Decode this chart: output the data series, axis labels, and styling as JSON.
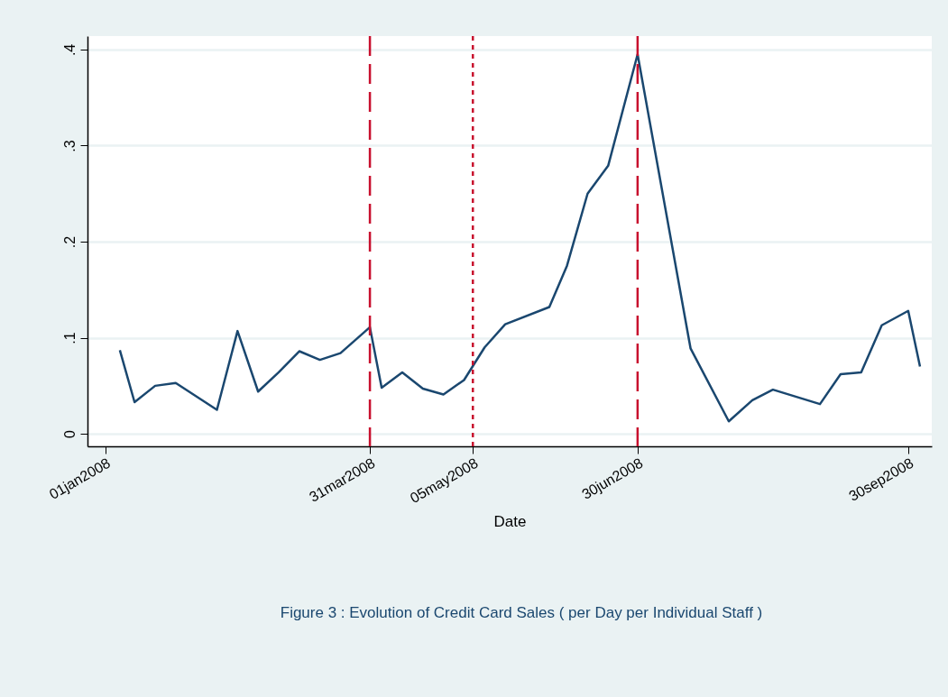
{
  "chart_data": {
    "type": "line",
    "xlabel": "Date",
    "x": [
      "2008-01-06",
      "2008-01-11",
      "2008-01-18",
      "2008-01-25",
      "2008-02-08",
      "2008-02-15",
      "2008-02-22",
      "2008-02-29",
      "2008-03-07",
      "2008-03-14",
      "2008-03-21",
      "2008-03-31",
      "2008-04-04",
      "2008-04-11",
      "2008-04-18",
      "2008-04-25",
      "2008-05-02",
      "2008-05-09",
      "2008-05-16",
      "2008-05-31",
      "2008-06-06",
      "2008-06-13",
      "2008-06-20",
      "2008-06-30",
      "2008-07-18",
      "2008-07-31",
      "2008-08-08",
      "2008-08-15",
      "2008-08-31",
      "2008-09-07",
      "2008-09-14",
      "2008-09-21",
      "2008-09-30",
      "2008-10-04"
    ],
    "series": [
      {
        "color": "#1a476f",
        "values": [
          0.087,
          0.033,
          0.05,
          0.053,
          0.025,
          0.107,
          0.044,
          0.064,
          0.086,
          0.077,
          0.084,
          0.111,
          0.048,
          0.064,
          0.047,
          0.041,
          0.056,
          0.09,
          0.114,
          0.132,
          0.175,
          0.25,
          0.279,
          0.395,
          0.089,
          0.013,
          0.035,
          0.046,
          0.031,
          0.062,
          0.064,
          0.113,
          0.128,
          0.07
        ]
      }
    ],
    "xlim": [
      "2007-12-26",
      "2008-10-08"
    ],
    "xticks": [
      {
        "value": "2008-01-01",
        "label": "01jan2008"
      },
      {
        "value": "2008-03-31",
        "label": "31mar2008"
      },
      {
        "value": "2008-05-05",
        "label": "05may2008"
      },
      {
        "value": "2008-06-30",
        "label": "30jun2008"
      },
      {
        "value": "2008-09-30",
        "label": "30sep2008"
      }
    ],
    "ylim": [
      -0.013,
      0.414
    ],
    "yticks": [
      {
        "value": 0,
        "label": "0"
      },
      {
        "value": 0.1,
        "label": ".1"
      },
      {
        "value": 0.2,
        "label": ".2"
      },
      {
        "value": 0.3,
        "label": ".3"
      },
      {
        "value": 0.4,
        "label": ".4"
      }
    ],
    "ref_lines": [
      {
        "axis": "x",
        "value": "2008-03-31",
        "color": "#c8102e",
        "line_style": "dashed"
      },
      {
        "axis": "x",
        "value": "2008-05-05",
        "color": "#c8102e",
        "line_style": "dotted"
      },
      {
        "axis": "x",
        "value": "2008-06-30",
        "color": "#c8102e",
        "line_style": "dashed"
      }
    ],
    "grid": "y",
    "marker": "none",
    "line_style": "solid",
    "annotations": [
      "Figure 3 : Evolution of Credit Card Sales ( per Day per Individual Staff )"
    ]
  }
}
